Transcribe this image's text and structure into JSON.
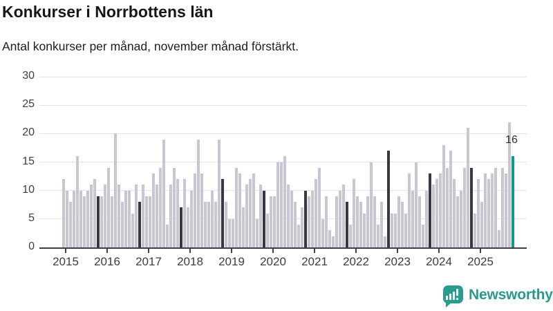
{
  "header": {
    "title": "Konkurser i Norrbottens län",
    "subtitle": "Antal konkurser per månad, november månad förstärkt."
  },
  "chart_data": {
    "type": "bar",
    "title": "Konkurser i Norrbottens län",
    "subtitle": "Antal konkurser per månad, november månad förstärkt.",
    "ylabel": "",
    "xlabel": "",
    "ylim": [
      0,
      30
    ],
    "y_ticks": [
      0,
      5,
      10,
      15,
      20,
      25,
      30
    ],
    "grid": true,
    "x_tick_labels": [
      "2015",
      "2016",
      "2017",
      "2018",
      "2019",
      "2020",
      "2021",
      "2022",
      "2023",
      "2024",
      "2025"
    ],
    "highlight_rule": "november bars darker; latest bar (nov 2025) teal with value label",
    "series": [
      {
        "year": 2015,
        "values": [
          12,
          10,
          8,
          10,
          16,
          10,
          9,
          10,
          11,
          12,
          9,
          9
        ]
      },
      {
        "year": 2016,
        "values": [
          11,
          14,
          9,
          20,
          11,
          8,
          10,
          10,
          6,
          11,
          8,
          11
        ]
      },
      {
        "year": 2017,
        "values": [
          9,
          9,
          13,
          11,
          14,
          19,
          4,
          11,
          14,
          12,
          7,
          12
        ]
      },
      {
        "year": 2018,
        "values": [
          7,
          10,
          13,
          19,
          13,
          8,
          8,
          10,
          8,
          19,
          12,
          8
        ]
      },
      {
        "year": 2019,
        "values": [
          5,
          5,
          14,
          13,
          7,
          11,
          12,
          13,
          5,
          11,
          10,
          6
        ]
      },
      {
        "year": 2020,
        "values": [
          9,
          9,
          15,
          15,
          16,
          11,
          10,
          8,
          4,
          7,
          10,
          9
        ]
      },
      {
        "year": 2021,
        "values": [
          10,
          12,
          14,
          5,
          9,
          3,
          2,
          9,
          10,
          11,
          8,
          4
        ]
      },
      {
        "year": 2022,
        "values": [
          12,
          9,
          8,
          6,
          9,
          15,
          9,
          4,
          8,
          2,
          17,
          6
        ]
      },
      {
        "year": 2023,
        "values": [
          6,
          9,
          8,
          6,
          13,
          10,
          15,
          9,
          4,
          10,
          13,
          11
        ]
      },
      {
        "year": 2024,
        "values": [
          12,
          13,
          18,
          14,
          17,
          12,
          9,
          10,
          14,
          21,
          14,
          6
        ]
      },
      {
        "year": 2025,
        "values": [
          12,
          8,
          13,
          12,
          13,
          14,
          3,
          14,
          13,
          22,
          16
        ]
      }
    ],
    "november_index": 10,
    "annotation": {
      "text": "16",
      "target": "2025-11"
    },
    "colors": {
      "bar": "#c9c6d3",
      "november_bar": "#3a3743",
      "current_bar": "#109a8e",
      "gridline": "#e3e3e7",
      "axis": "#3f3e45",
      "tick_text": "#3c3c42"
    }
  },
  "footer": {
    "brand": "Newsworthy",
    "brand_color": "#28998c"
  }
}
